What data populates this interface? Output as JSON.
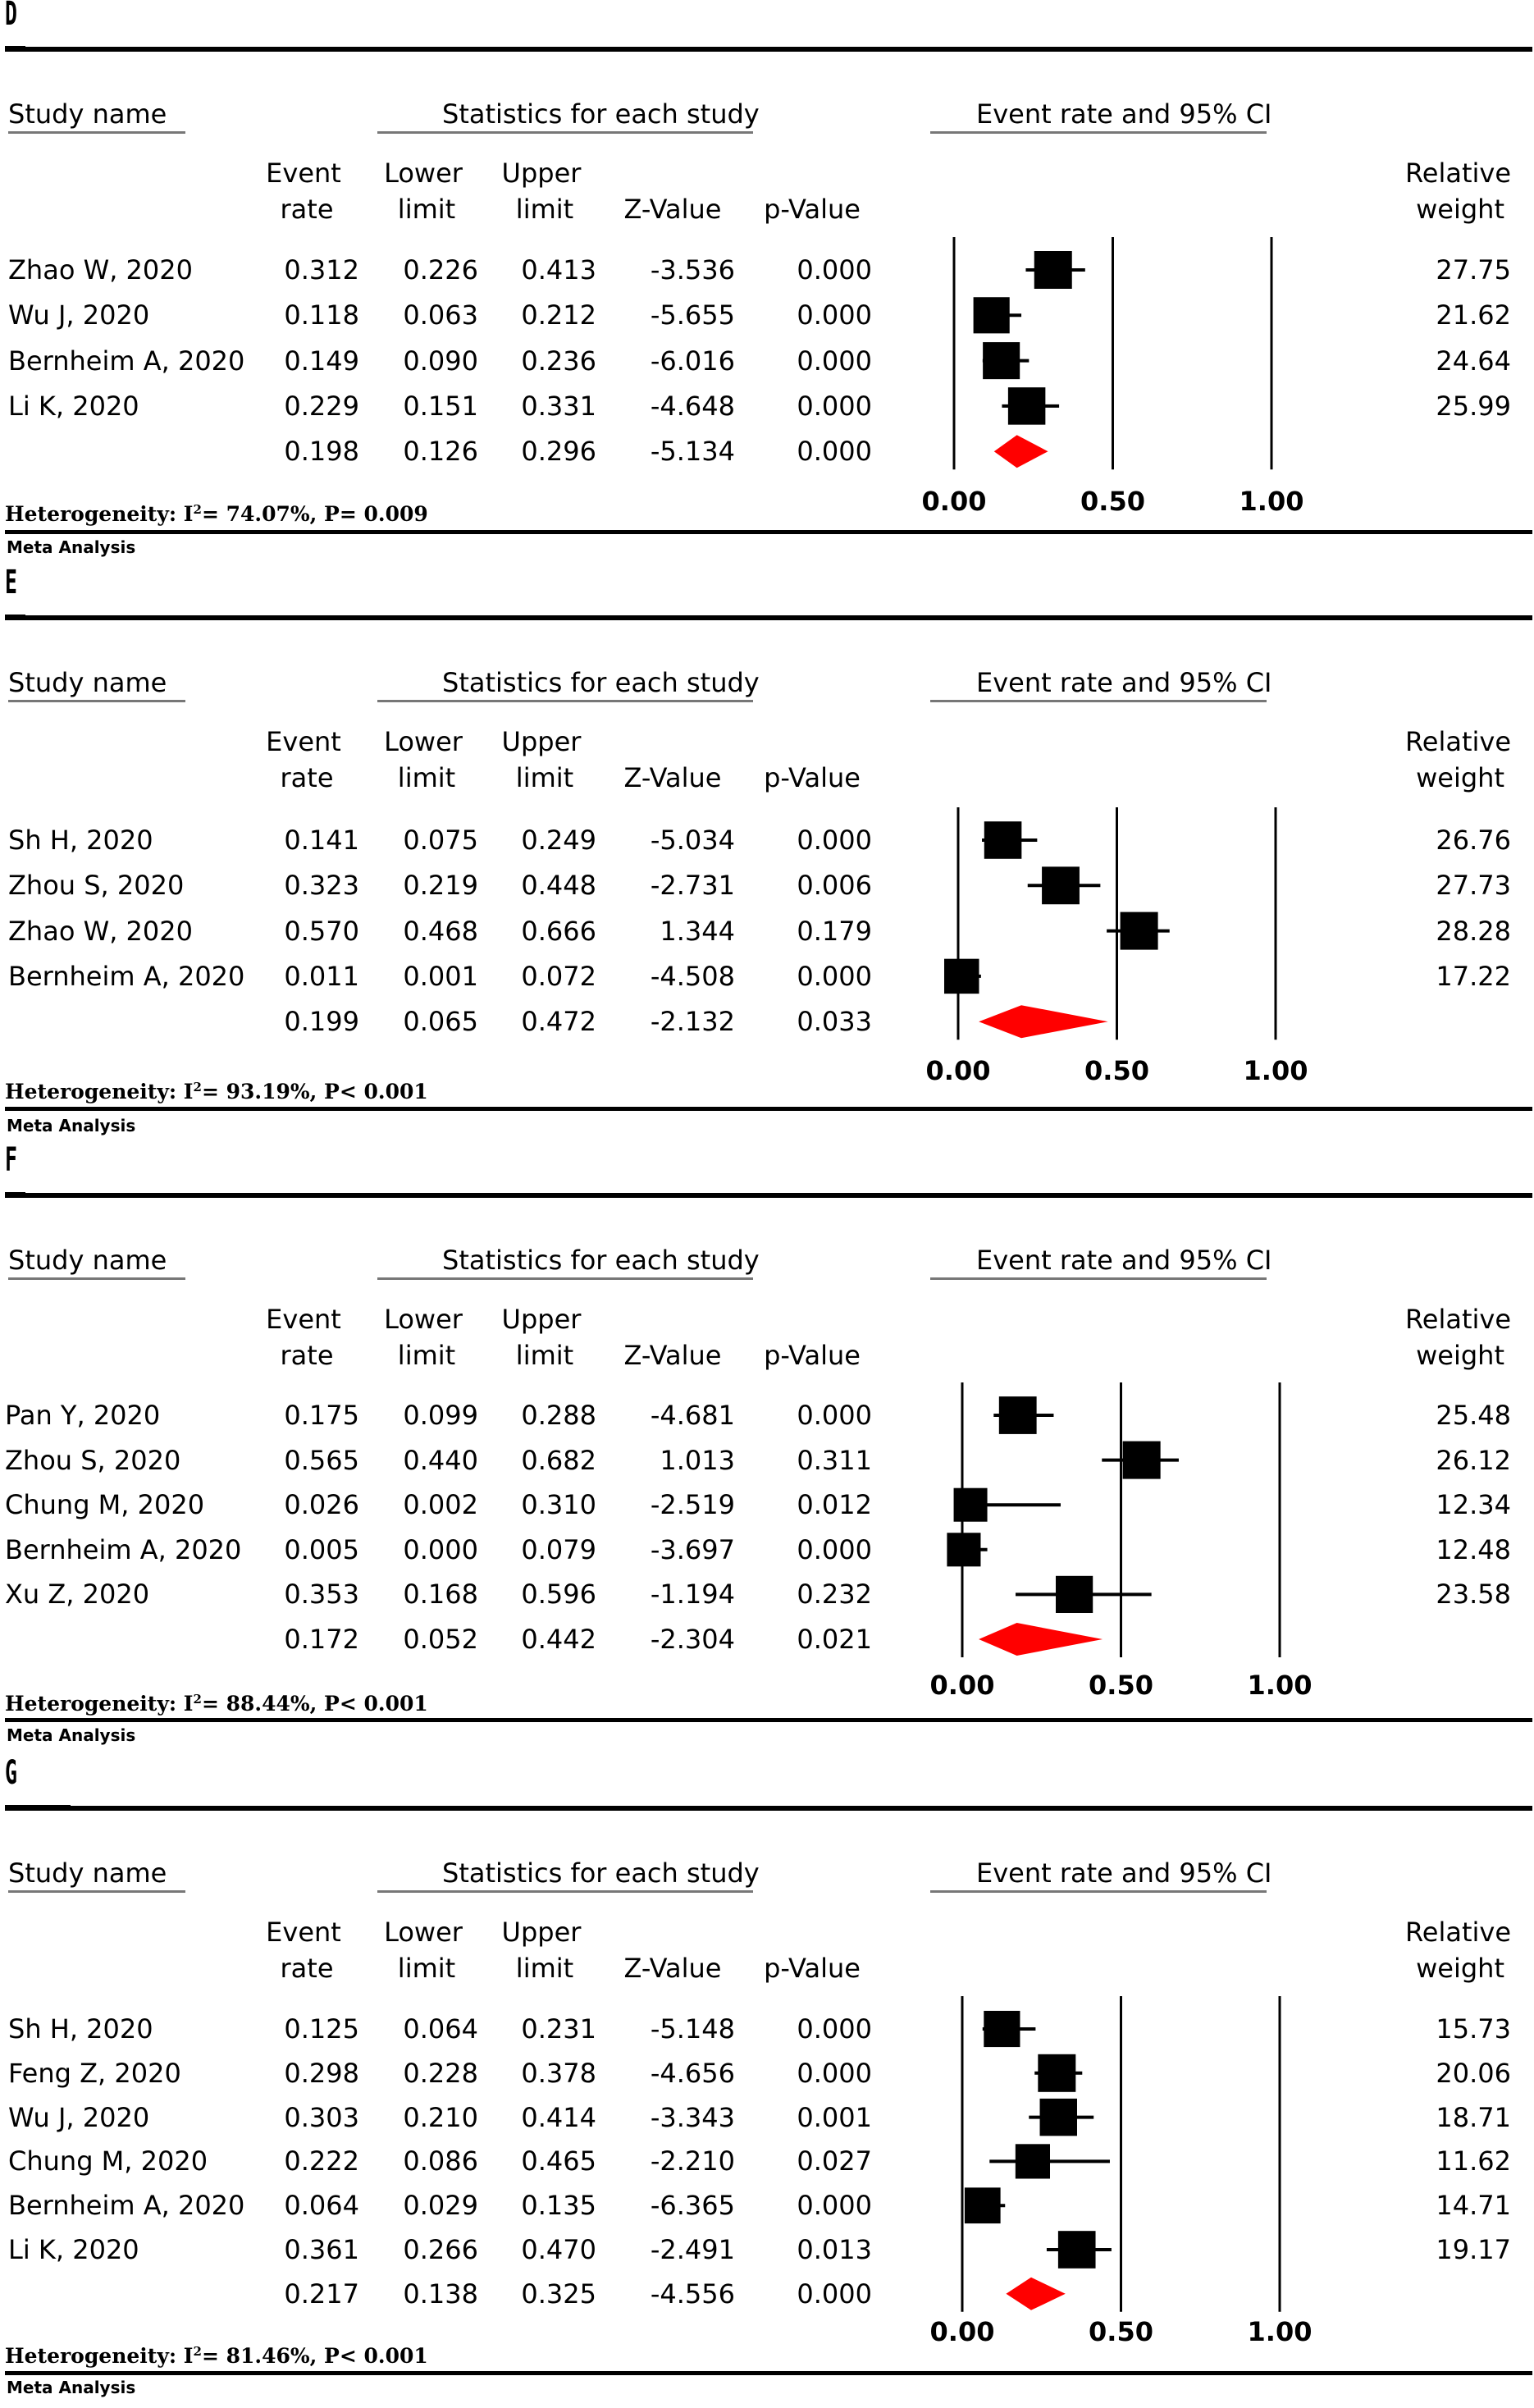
{
  "headers": {
    "study_name": "Study name",
    "stats": "Statistics for each study",
    "plot_title": "Event rate and 95% CI",
    "event_rate": [
      "Event",
      "rate"
    ],
    "lower_limit": [
      "Lower",
      "limit"
    ],
    "upper_limit": [
      "Upper",
      "limit"
    ],
    "z_value": "Z-Value",
    "p_value": "p-Value",
    "relative_weight": [
      "Relative",
      "weight"
    ]
  },
  "footer_label": "Meta Analysis",
  "colors": {
    "summary_diamond": "#ff0000",
    "study_marker": "#000000"
  },
  "chart_data": [
    {
      "type": "forest",
      "panel": "D",
      "x_ticks": [
        "0.00",
        "0.50",
        "1.00"
      ],
      "xlim": [
        0,
        1
      ],
      "reference_lines": [
        0.5,
        1.0
      ],
      "heterogeneity": {
        "prefix": "Heterogeneity: I",
        "sup": "2",
        "text": "= 74.07%, P= 0.009"
      },
      "studies": [
        {
          "name": "Zhao W, 2020",
          "event_rate": "0.312",
          "lower": "0.226",
          "upper": "0.413",
          "z": "-3.536",
          "p": "0.000",
          "weight": "27.75"
        },
        {
          "name": "Wu J, 2020",
          "event_rate": "0.118",
          "lower": "0.063",
          "upper": "0.212",
          "z": "-5.655",
          "p": "0.000",
          "weight": "21.62"
        },
        {
          "name": "Bernheim A, 2020",
          "event_rate": "0.149",
          "lower": "0.090",
          "upper": "0.236",
          "z": "-6.016",
          "p": "0.000",
          "weight": "24.64"
        },
        {
          "name": "Li K, 2020",
          "event_rate": "0.229",
          "lower": "0.151",
          "upper": "0.331",
          "z": "-4.648",
          "p": "0.000",
          "weight": "25.99"
        }
      ],
      "summary": {
        "event_rate": "0.198",
        "lower": "0.126",
        "upper": "0.296",
        "z": "-5.134",
        "p": "0.000"
      }
    },
    {
      "type": "forest",
      "panel": "E",
      "x_ticks": [
        "0.00",
        "0.50",
        "1.00"
      ],
      "xlim": [
        0,
        1
      ],
      "reference_lines": [
        0.5,
        1.0
      ],
      "heterogeneity": {
        "prefix": "Heterogeneity: I",
        "sup": "2",
        "text": "= 93.19%, P< 0.001"
      },
      "studies": [
        {
          "name": "Sh H, 2020",
          "event_rate": "0.141",
          "lower": "0.075",
          "upper": "0.249",
          "z": "-5.034",
          "p": "0.000",
          "weight": "26.76"
        },
        {
          "name": "Zhou S, 2020",
          "event_rate": "0.323",
          "lower": "0.219",
          "upper": "0.448",
          "z": "-2.731",
          "p": "0.006",
          "weight": "27.73"
        },
        {
          "name": "Zhao W, 2020",
          "event_rate": "0.570",
          "lower": "0.468",
          "upper": "0.666",
          "z": "1.344",
          "p": "0.179",
          "weight": "28.28"
        },
        {
          "name": "Bernheim A, 2020",
          "event_rate": "0.011",
          "lower": "0.001",
          "upper": "0.072",
          "z": "-4.508",
          "p": "0.000",
          "weight": "17.22"
        }
      ],
      "summary": {
        "event_rate": "0.199",
        "lower": "0.065",
        "upper": "0.472",
        "z": "-2.132",
        "p": "0.033"
      }
    },
    {
      "type": "forest",
      "panel": "F",
      "x_ticks": [
        "0.00",
        "0.50",
        "1.00"
      ],
      "xlim": [
        0,
        1
      ],
      "reference_lines": [
        0.5,
        1.0
      ],
      "heterogeneity": {
        "prefix": "Heterogeneity: I",
        "sup": "2",
        "text": "= 88.44%, P< 0.001"
      },
      "studies": [
        {
          "name": "Pan Y, 2020",
          "event_rate": "0.175",
          "lower": "0.099",
          "upper": "0.288",
          "z": "-4.681",
          "p": "0.000",
          "weight": "25.48"
        },
        {
          "name": "Zhou S, 2020",
          "event_rate": "0.565",
          "lower": "0.440",
          "upper": "0.682",
          "z": "1.013",
          "p": "0.311",
          "weight": "26.12"
        },
        {
          "name": "Chung M, 2020",
          "event_rate": "0.026",
          "lower": "0.002",
          "upper": "0.310",
          "z": "-2.519",
          "p": "0.012",
          "weight": "12.34"
        },
        {
          "name": "Bernheim A, 2020",
          "event_rate": "0.005",
          "lower": "0.000",
          "upper": "0.079",
          "z": "-3.697",
          "p": "0.000",
          "weight": "12.48"
        },
        {
          "name": "Xu Z, 2020",
          "event_rate": "0.353",
          "lower": "0.168",
          "upper": "0.596",
          "z": "-1.194",
          "p": "0.232",
          "weight": "23.58"
        }
      ],
      "summary": {
        "event_rate": "0.172",
        "lower": "0.052",
        "upper": "0.442",
        "z": "-2.304",
        "p": "0.021"
      }
    },
    {
      "type": "forest",
      "panel": "G",
      "x_ticks": [
        "0.00",
        "0.50",
        "1.00"
      ],
      "xlim": [
        0,
        1
      ],
      "reference_lines": [
        0.5,
        1.0
      ],
      "heterogeneity": {
        "prefix": "Heterogeneity: I",
        "sup": "2",
        "text": "= 81.46%, P< 0.001"
      },
      "studies": [
        {
          "name": "Sh H, 2020",
          "event_rate": "0.125",
          "lower": "0.064",
          "upper": "0.231",
          "z": "-5.148",
          "p": "0.000",
          "weight": "15.73"
        },
        {
          "name": "Feng Z, 2020",
          "event_rate": "0.298",
          "lower": "0.228",
          "upper": "0.378",
          "z": "-4.656",
          "p": "0.000",
          "weight": "20.06"
        },
        {
          "name": "Wu J, 2020",
          "event_rate": "0.303",
          "lower": "0.210",
          "upper": "0.414",
          "z": "-3.343",
          "p": "0.001",
          "weight": "18.71"
        },
        {
          "name": "Chung M, 2020",
          "event_rate": "0.222",
          "lower": "0.086",
          "upper": "0.465",
          "z": "-2.210",
          "p": "0.027",
          "weight": "11.62"
        },
        {
          "name": "Bernheim A, 2020",
          "event_rate": "0.064",
          "lower": "0.029",
          "upper": "0.135",
          "z": "-6.365",
          "p": "0.000",
          "weight": "14.71"
        },
        {
          "name": "Li K, 2020",
          "event_rate": "0.361",
          "lower": "0.266",
          "upper": "0.470",
          "z": "-2.491",
          "p": "0.013",
          "weight": "19.17"
        }
      ],
      "summary": {
        "event_rate": "0.217",
        "lower": "0.138",
        "upper": "0.325",
        "z": "-4.556",
        "p": "0.000"
      }
    }
  ]
}
